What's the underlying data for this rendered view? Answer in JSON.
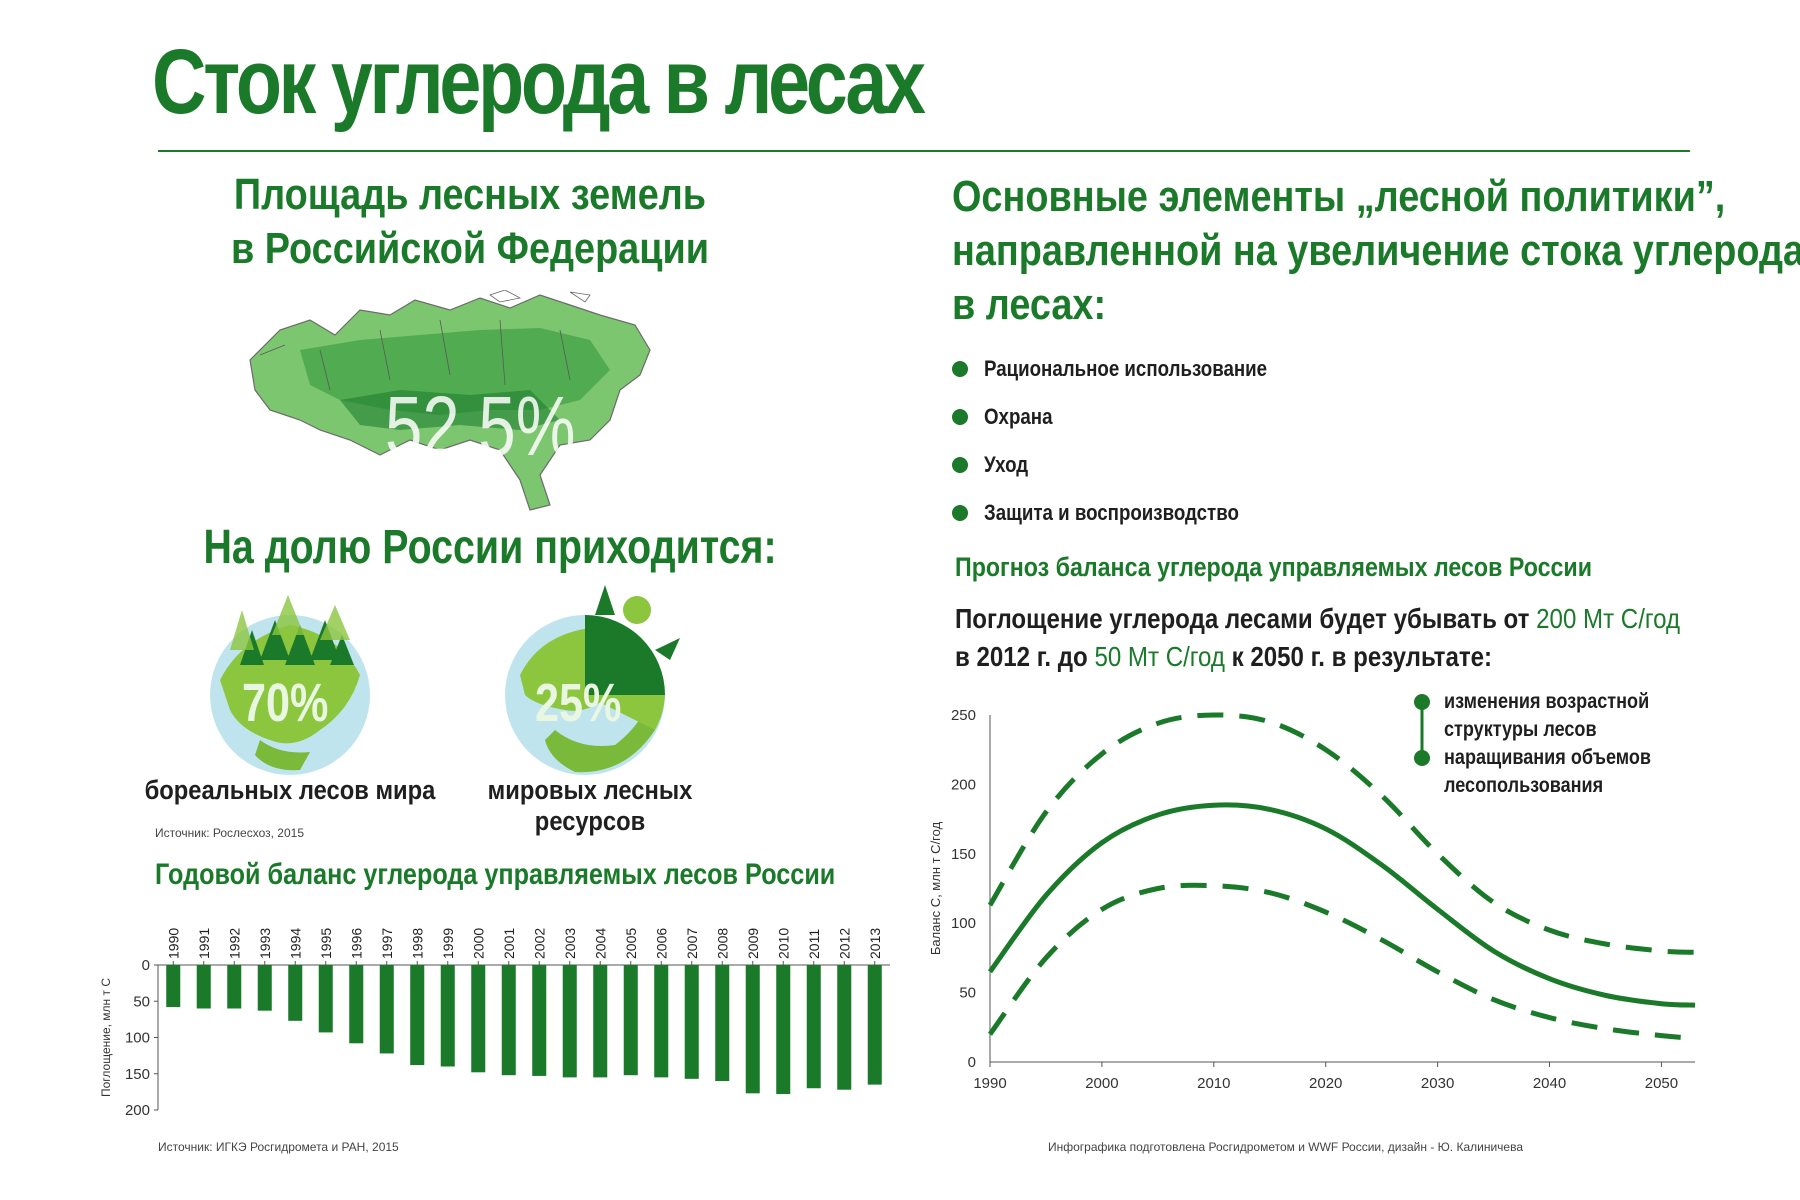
{
  "title": "Сток углерода в лесах",
  "forest_area": {
    "title_line1": "Площадь лесных земель",
    "title_line2": "в Российской Федерации",
    "percent": "52,5%",
    "map_icon": "russia-forest-map"
  },
  "share": {
    "title": "На долю России приходится:",
    "items": [
      {
        "percent": "70%",
        "label": "бореальных лесов мира",
        "icon": "globe-with-trees-icon"
      },
      {
        "percent": "25%",
        "label": "мировых лесных ресурсов",
        "icon": "globe-with-sector-icon"
      }
    ],
    "source": "Источник: Рослесхоз, 2015"
  },
  "policy": {
    "title_line1": "Основные элементы „лесной политики”,",
    "title_line2": "направленной на увеличение стока углерода",
    "title_line3": "в лесах:",
    "items": [
      "Рациональное использование",
      "Охрана",
      "Уход",
      "Защита и воспроизводство"
    ]
  },
  "forecast": {
    "title": "Прогноз баланса углерода управляемых лесов России",
    "text_part1": "Поглощение углерода лесами будет убывать от ",
    "text_hl1": "200 Мт С/год",
    "text_part2": "в 2012 г. до ",
    "text_hl2": "50 Мт С/год",
    "text_part3": " к 2050 г. в результате:",
    "legend": [
      {
        "line1": "изменения возрастной",
        "line2": "структуры лесов"
      },
      {
        "line1": "наращивания объемов",
        "line2": "лесопользования"
      }
    ]
  },
  "annual": {
    "title": "Годовой баланс углерода управляемых лесов России",
    "source": "Источник: ИГКЭ Росгидромета и РАН, 2015"
  },
  "credit": "Инфографика подготовлена Росгидрометом и WWF России, дизайн - Ю. Калиничева",
  "colors": {
    "accent": "#1a7a2a",
    "bar": "#1a7a2a",
    "light_green": "#8cc63f",
    "globe_blue": "#bfe4ee"
  },
  "chart_data": [
    {
      "type": "bar",
      "title": "Годовой баланс углерода управляемых лесов России",
      "categories": [
        "1990",
        "1991",
        "1992",
        "1993",
        "1994",
        "1995",
        "1996",
        "1997",
        "1998",
        "1999",
        "2000",
        "2001",
        "2002",
        "2003",
        "2004",
        "2005",
        "2006",
        "2007",
        "2008",
        "2009",
        "2010",
        "2011",
        "2012",
        "2013"
      ],
      "values": [
        58,
        60,
        60,
        63,
        77,
        93,
        108,
        122,
        138,
        140,
        148,
        152,
        153,
        155,
        155,
        152,
        155,
        157,
        160,
        177,
        178,
        170,
        172,
        165
      ],
      "ylabel": "Поглощение, млн т С",
      "yticks": [
        0,
        50,
        100,
        150,
        200
      ],
      "ylim": [
        0,
        200
      ],
      "inverted": true
    },
    {
      "type": "line",
      "title": "Прогноз баланса углерода управляемых лесов России",
      "ylabel": "Баланс С, млн т С/год",
      "xlim": [
        1990,
        2053
      ],
      "ylim": [
        0,
        250
      ],
      "xticks": [
        1990,
        2000,
        2010,
        2020,
        2030,
        2040,
        2050
      ],
      "yticks": [
        0,
        50,
        100,
        150,
        200,
        250
      ],
      "series": [
        {
          "style": "dashed",
          "x": [
            1990,
            1995,
            2000,
            2005,
            2010,
            2015,
            2020,
            2025,
            2030,
            2035,
            2040,
            2045,
            2050,
            2053
          ],
          "y": [
            113,
            180,
            222,
            244,
            250,
            245,
            225,
            192,
            150,
            115,
            95,
            85,
            80,
            79
          ]
        },
        {
          "style": "solid",
          "x": [
            1990,
            1995,
            2000,
            2005,
            2010,
            2015,
            2020,
            2025,
            2030,
            2035,
            2040,
            2045,
            2050,
            2053
          ],
          "y": [
            65,
            120,
            158,
            178,
            185,
            182,
            168,
            142,
            110,
            80,
            60,
            48,
            42,
            41
          ]
        },
        {
          "style": "dashed",
          "x": [
            1990,
            1995,
            2000,
            2005,
            2010,
            2015,
            2020,
            2025,
            2030,
            2035,
            2040,
            2045,
            2050,
            2053
          ],
          "y": [
            20,
            75,
            110,
            125,
            127,
            122,
            108,
            88,
            65,
            45,
            32,
            24,
            19,
            17
          ]
        }
      ]
    }
  ]
}
